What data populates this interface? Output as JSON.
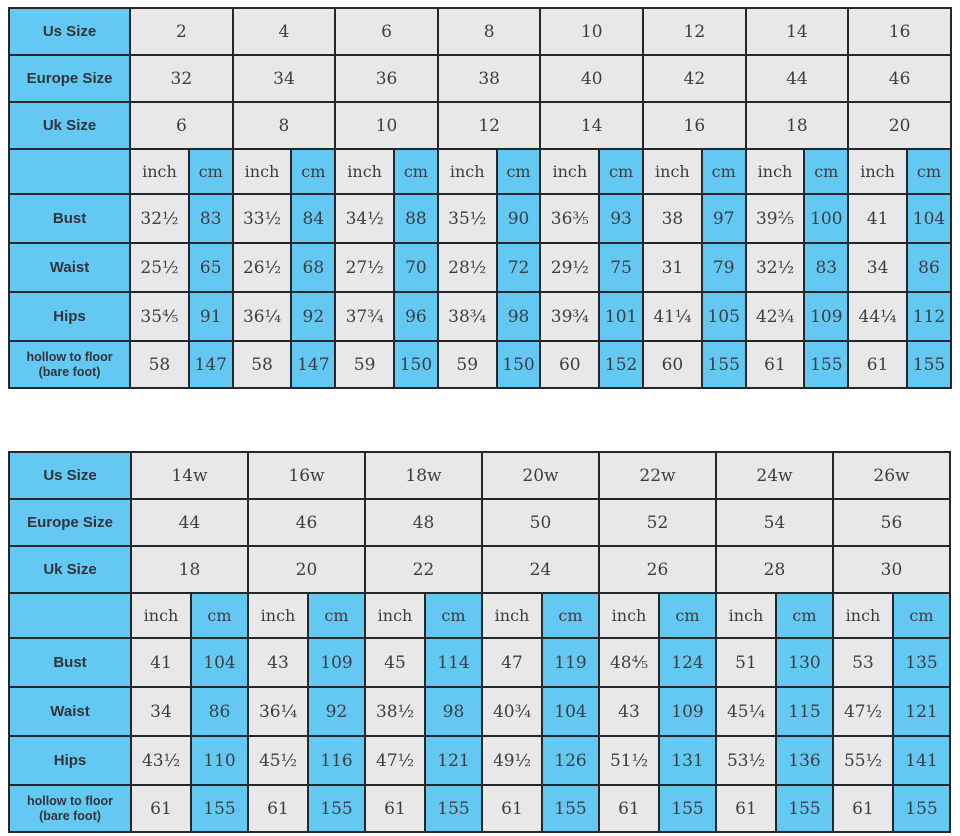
{
  "colors": {
    "blue": "#63c9f2",
    "gray": "#e8e8e8",
    "border": "#26262b",
    "text": "#3d3d44",
    "label_text": "#33333a"
  },
  "chart_data": [
    {
      "type": "table",
      "name": "standard-sizes",
      "size_rows": [
        {
          "label": "Us Size",
          "values": [
            "2",
            "4",
            "6",
            "8",
            "10",
            "12",
            "14",
            "16"
          ]
        },
        {
          "label": "Europe Size",
          "values": [
            "32",
            "34",
            "36",
            "38",
            "40",
            "42",
            "44",
            "46"
          ]
        },
        {
          "label": "Uk Size",
          "values": [
            "6",
            "8",
            "10",
            "12",
            "14",
            "16",
            "18",
            "20"
          ]
        }
      ],
      "unit_labels": {
        "inch": "inch",
        "cm": "cm"
      },
      "measure_rows": [
        {
          "label": "Bust",
          "inch": [
            "32½",
            "33½",
            "34½",
            "35½",
            "36⅗",
            "38",
            "39⅖",
            "41"
          ],
          "cm": [
            "83",
            "84",
            "88",
            "90",
            "93",
            "97",
            "100",
            "104"
          ]
        },
        {
          "label": "Waist",
          "inch": [
            "25½",
            "26½",
            "27½",
            "28½",
            "29½",
            "31",
            "32½",
            "34"
          ],
          "cm": [
            "65",
            "68",
            "70",
            "72",
            "75",
            "79",
            "83",
            "86"
          ]
        },
        {
          "label": "Hips",
          "inch": [
            "35⅘",
            "36¼",
            "37¾",
            "38¾",
            "39¾",
            "41¼",
            "42¾",
            "44¼"
          ],
          "cm": [
            "91",
            "92",
            "96",
            "98",
            "101",
            "105",
            "109",
            "112"
          ]
        },
        {
          "label": "hollow to floor (bare foot)",
          "inch": [
            "58",
            "58",
            "59",
            "59",
            "60",
            "60",
            "61",
            "61"
          ],
          "cm": [
            "147",
            "147",
            "150",
            "150",
            "152",
            "155",
            "155",
            "155"
          ]
        }
      ]
    },
    {
      "type": "table",
      "name": "plus-sizes",
      "size_rows": [
        {
          "label": "Us Size",
          "values": [
            "14w",
            "16w",
            "18w",
            "20w",
            "22w",
            "24w",
            "26w"
          ]
        },
        {
          "label": "Europe Size",
          "values": [
            "44",
            "46",
            "48",
            "50",
            "52",
            "54",
            "56"
          ]
        },
        {
          "label": "Uk Size",
          "values": [
            "18",
            "20",
            "22",
            "24",
            "26",
            "28",
            "30"
          ]
        }
      ],
      "unit_labels": {
        "inch": "inch",
        "cm": "cm"
      },
      "measure_rows": [
        {
          "label": "Bust",
          "inch": [
            "41",
            "43",
            "45",
            "47",
            "48⅘",
            "51",
            "53"
          ],
          "cm": [
            "104",
            "109",
            "114",
            "119",
            "124",
            "130",
            "135"
          ]
        },
        {
          "label": "Waist",
          "inch": [
            "34",
            "36¼",
            "38½",
            "40¾",
            "43",
            "45¼",
            "47½"
          ],
          "cm": [
            "86",
            "92",
            "98",
            "104",
            "109",
            "115",
            "121"
          ]
        },
        {
          "label": "Hips",
          "inch": [
            "43½",
            "45½",
            "47½",
            "49½",
            "51½",
            "53½",
            "55½"
          ],
          "cm": [
            "110",
            "116",
            "121",
            "126",
            "131",
            "136",
            "141"
          ]
        },
        {
          "label": "hollow to floor (bare foot)",
          "inch": [
            "61",
            "61",
            "61",
            "61",
            "61",
            "61",
            "61"
          ],
          "cm": [
            "155",
            "155",
            "155",
            "155",
            "155",
            "155",
            "155"
          ]
        }
      ]
    }
  ]
}
